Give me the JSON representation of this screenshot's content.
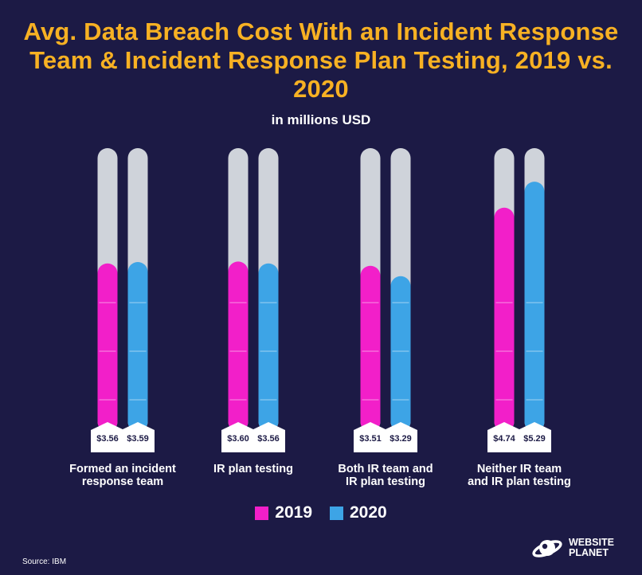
{
  "title": "Avg. Data Breach Cost With an Incident Response Team & Incident Response Plan Testing, 2019 vs. 2020",
  "subtitle": "in millions USD",
  "source": "Source: IBM",
  "logo": {
    "line1": "WEBSITE",
    "line2": "PLANET",
    "icon": "planet-icon"
  },
  "colors": {
    "background": "#1c1a45",
    "title": "#f7b123",
    "track": "#cfd3da",
    "2019": "#f21fc9",
    "2020": "#3da4e6"
  },
  "chart_data": {
    "type": "bar",
    "title": "Avg. Data Breach Cost With an Incident Response Team & Incident Response Plan Testing, 2019 vs. 2020",
    "ylabel": "in millions USD",
    "ylim": [
      0,
      6
    ],
    "categories": [
      [
        "Formed an incident",
        "response team"
      ],
      [
        "IR plan testing"
      ],
      [
        "Both IR team and",
        "IR plan testing"
      ],
      [
        "Neither IR team",
        "and IR plan testing"
      ]
    ],
    "series": [
      {
        "name": "2019",
        "color": "#f21fc9",
        "values": [
          3.56,
          3.6,
          3.51,
          4.74
        ],
        "labels": [
          "$3.56",
          "$3.60",
          "$3.51",
          "$4.74"
        ]
      },
      {
        "name": "2020",
        "color": "#3da4e6",
        "values": [
          3.59,
          3.56,
          3.29,
          5.29
        ],
        "labels": [
          "$3.59",
          "$3.56",
          "$3.29",
          "$5.29"
        ]
      }
    ],
    "legend": "bottom-center"
  }
}
